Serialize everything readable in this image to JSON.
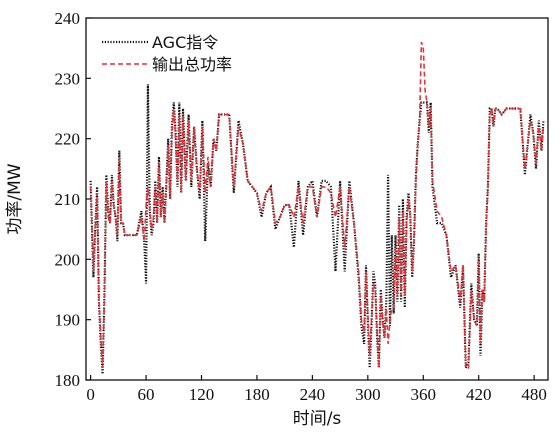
{
  "chart_data": {
    "type": "line",
    "xlabel": "时间/s",
    "ylabel": "功率/MW",
    "xlim": [
      -5,
      495
    ],
    "ylim": [
      180,
      240
    ],
    "xticks": [
      0,
      60,
      120,
      180,
      240,
      300,
      360,
      420,
      480
    ],
    "yticks": [
      180,
      190,
      200,
      210,
      220,
      230,
      240
    ],
    "grid": false,
    "legend_position": "top-left",
    "series": [
      {
        "name": "AGC指令",
        "color": "#111111",
        "style": "dotted",
        "x": [
          0,
          3,
          5,
          7,
          9,
          11,
          13,
          15,
          17,
          19,
          21,
          23,
          25,
          27,
          29,
          31,
          33,
          35,
          37,
          40,
          45,
          50,
          55,
          58,
          60,
          62,
          64,
          66,
          68,
          70,
          72,
          74,
          76,
          78,
          80,
          82,
          84,
          86,
          88,
          90,
          92,
          94,
          96,
          98,
          100,
          103,
          106,
          109,
          112,
          115,
          118,
          121,
          124,
          127,
          130,
          133,
          136,
          139,
          142,
          146,
          150,
          155,
          160,
          165,
          170,
          175,
          180,
          185,
          190,
          195,
          200,
          205,
          210,
          215,
          220,
          225,
          230,
          235,
          240,
          245,
          250,
          255,
          260,
          265,
          270,
          275,
          280,
          285,
          290,
          293,
          296,
          298,
          300,
          302,
          304,
          306,
          308,
          310,
          312,
          314,
          316,
          318,
          320,
          322,
          324,
          326,
          328,
          330,
          332,
          334,
          336,
          338,
          340,
          342,
          344,
          346,
          348,
          350,
          352,
          354,
          356,
          358,
          360,
          362,
          364,
          366,
          368,
          370,
          375,
          380,
          385,
          390,
          395,
          400,
          403,
          406,
          409,
          412,
          415,
          418,
          420,
          422,
          424,
          426,
          428,
          430,
          432,
          434,
          436,
          438,
          440,
          445,
          450,
          455,
          460,
          465,
          470,
          473,
          476,
          479,
          482,
          485,
          488,
          490
        ],
        "y": [
          213,
          197,
          205,
          212,
          193,
          186,
          181,
          195,
          214,
          208,
          206,
          214,
          209,
          207,
          203,
          218,
          206,
          206,
          204,
          204,
          204,
          204,
          208,
          203,
          196,
          229,
          208,
          204,
          206,
          213,
          206,
          217,
          207,
          212,
          206,
          213,
          220,
          210,
          222,
          226,
          221,
          212,
          226,
          211,
          225,
          213,
          224,
          212,
          222,
          215,
          210,
          223,
          203,
          216,
          212,
          220,
          218,
          224,
          224,
          224,
          224,
          211,
          223,
          219,
          213,
          212,
          211,
          207,
          211,
          212,
          205,
          207,
          209,
          209,
          202,
          213,
          204,
          212,
          213,
          207,
          213,
          213,
          212,
          198,
          213,
          198,
          213,
          206,
          197,
          189,
          186,
          199,
          190,
          182,
          189,
          198,
          196,
          187,
          182,
          195,
          190,
          187,
          193,
          214,
          189,
          204,
          191,
          204,
          193,
          209,
          193,
          210,
          192,
          207,
          211,
          207,
          197,
          203,
          214,
          219,
          223,
          226,
          226,
          226,
          226,
          221,
          226,
          212,
          206,
          206,
          204,
          197,
          199,
          192,
          199,
          182,
          183,
          196,
          190,
          189,
          201,
          184,
          195,
          193,
          206,
          212,
          225,
          225,
          222,
          225,
          225,
          224,
          225,
          225,
          225,
          225,
          214,
          219,
          224,
          221,
          215,
          223,
          218,
          223
        ]
      },
      {
        "name": "输出总功率",
        "color": "#e4343c",
        "style": "dashed",
        "x": [
          0,
          3,
          5,
          7,
          9,
          11,
          13,
          15,
          17,
          19,
          21,
          23,
          25,
          27,
          29,
          31,
          33,
          35,
          37,
          40,
          45,
          50,
          55,
          58,
          60,
          62,
          64,
          66,
          68,
          70,
          72,
          74,
          76,
          78,
          80,
          82,
          84,
          86,
          88,
          90,
          92,
          94,
          96,
          98,
          100,
          103,
          106,
          109,
          112,
          115,
          118,
          121,
          124,
          127,
          130,
          133,
          136,
          139,
          142,
          146,
          150,
          155,
          160,
          165,
          170,
          175,
          180,
          185,
          190,
          195,
          200,
          205,
          210,
          215,
          220,
          225,
          230,
          235,
          240,
          245,
          250,
          255,
          260,
          265,
          270,
          275,
          280,
          285,
          290,
          293,
          296,
          298,
          300,
          302,
          304,
          306,
          308,
          310,
          312,
          314,
          316,
          318,
          320,
          322,
          324,
          326,
          328,
          330,
          332,
          334,
          336,
          338,
          340,
          342,
          344,
          346,
          348,
          350,
          352,
          354,
          356,
          358,
          360,
          362,
          364,
          366,
          368,
          370,
          375,
          380,
          385,
          390,
          395,
          400,
          403,
          406,
          409,
          412,
          415,
          418,
          420,
          422,
          424,
          426,
          428,
          430,
          432,
          434,
          436,
          438,
          440,
          445,
          450,
          455,
          460,
          465,
          470,
          473,
          476,
          479,
          482,
          485,
          488,
          490
        ],
        "y": [
          212,
          198,
          205,
          211,
          194,
          187,
          182,
          194,
          213,
          207,
          206,
          213,
          209,
          207,
          204,
          217,
          206,
          206,
          204,
          204,
          204,
          204,
          207,
          203,
          209,
          212,
          208,
          205,
          207,
          212,
          206,
          216,
          207,
          211,
          206,
          212,
          219,
          210,
          221,
          225,
          220,
          213,
          224,
          211,
          224,
          213,
          223,
          213,
          222,
          215,
          211,
          222,
          211,
          217,
          212,
          220,
          218,
          224,
          224,
          224,
          224,
          212,
          222,
          219,
          213,
          212,
          211,
          208,
          211,
          212,
          206,
          207,
          209,
          209,
          207,
          212,
          206,
          212,
          212,
          207,
          212,
          212,
          211,
          207,
          212,
          202,
          212,
          206,
          198,
          190,
          188,
          198,
          191,
          184,
          190,
          196,
          195,
          188,
          182,
          194,
          190,
          187,
          192,
          186,
          190,
          192,
          192,
          202,
          194,
          207,
          194,
          208,
          194,
          206,
          210,
          207,
          198,
          203,
          213,
          219,
          223,
          236,
          235,
          228,
          226,
          222,
          225,
          213,
          208,
          207,
          204,
          198,
          199,
          193,
          199,
          182,
          182,
          195,
          190,
          189,
          200,
          186,
          195,
          193,
          205,
          212,
          224,
          225,
          222,
          225,
          225,
          224,
          225,
          225,
          225,
          225,
          215,
          219,
          223,
          221,
          216,
          222,
          218,
          222
        ]
      }
    ]
  }
}
